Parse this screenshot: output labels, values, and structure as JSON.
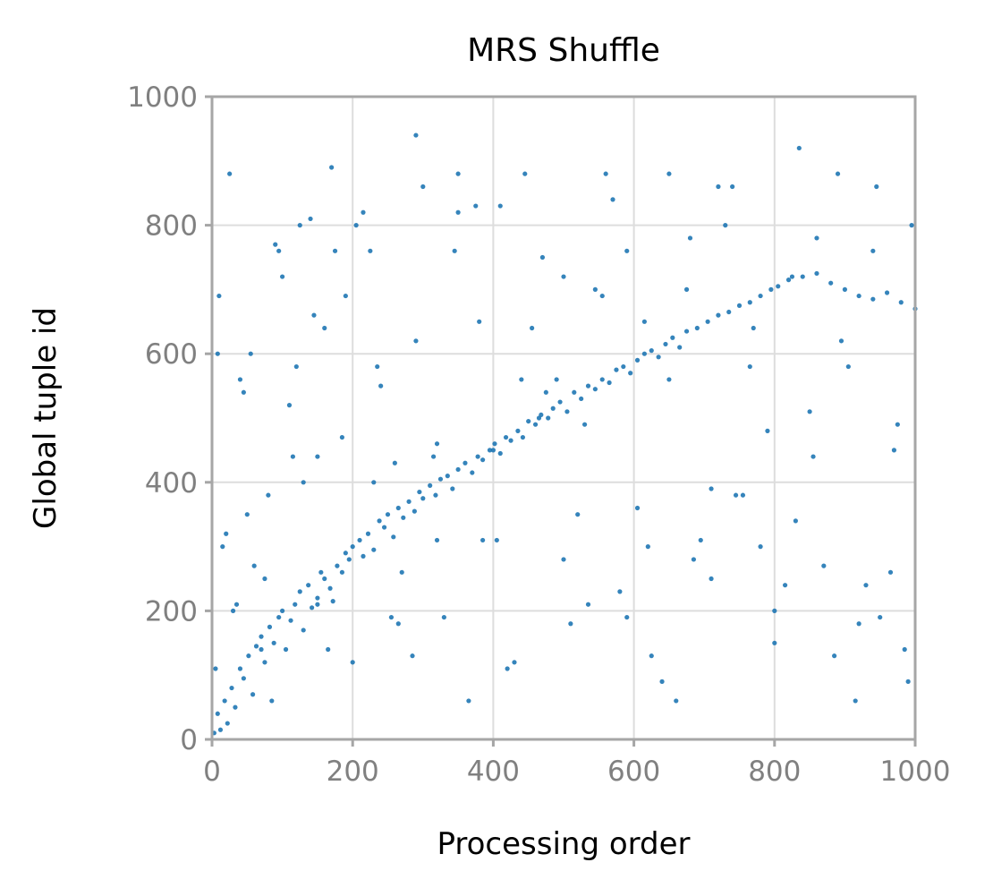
{
  "chart_data": {
    "type": "scatter",
    "title": "MRS Shuffle",
    "xlabel": "Processing order",
    "ylabel": "Global tuple id",
    "xlim": [
      0,
      1000
    ],
    "ylim": [
      0,
      1000
    ],
    "xticks": [
      0,
      200,
      400,
      600,
      800,
      1000
    ],
    "yticks": [
      0,
      200,
      400,
      600,
      800,
      1000
    ],
    "x_tick_labels": [
      "0",
      "200",
      "400",
      "600",
      "800",
      "1000"
    ],
    "y_tick_labels": [
      "0",
      "200",
      "400",
      "600",
      "800",
      "1000"
    ],
    "grid": true,
    "legend": "none",
    "color": "#1f77b4",
    "series": [
      {
        "x": [
          3,
          8,
          12,
          18,
          22,
          28,
          33,
          40,
          45,
          52,
          58,
          63,
          70,
          75,
          82,
          88,
          95,
          100,
          105,
          112,
          118,
          125,
          130,
          137,
          142,
          150,
          155,
          160,
          168,
          172,
          178,
          185,
          190,
          195,
          200,
          210,
          215,
          222,
          230,
          238,
          245,
          250,
          258,
          265,
          272,
          280,
          288,
          295,
          300,
          310,
          318,
          325,
          335,
          342,
          350,
          360,
          370,
          378,
          385,
          395,
          402,
          410,
          418,
          425,
          435,
          442,
          450,
          460,
          468,
          478,
          485,
          495,
          505,
          515,
          525,
          535,
          545,
          555,
          565,
          575,
          585,
          595,
          605,
          615,
          625,
          635,
          645,
          655,
          665,
          675,
          690,
          705,
          720,
          735,
          750,
          765,
          780,
          795,
          805,
          820,
          840,
          860,
          880,
          900,
          920,
          940,
          960,
          980,
          1000,
          10,
          25,
          40,
          60,
          75,
          90,
          110,
          130,
          150,
          170,
          190,
          215,
          240,
          265,
          290,
          320,
          350,
          380,
          410,
          440,
          470,
          500,
          530,
          560,
          590,
          620,
          650,
          680,
          710,
          740,
          770,
          800,
          830,
          860,
          890,
          920,
          950,
          975,
          15,
          35,
          55,
          80,
          100,
          125,
          150,
          175,
          200,
          230,
          260,
          290,
          320,
          350,
          385,
          420,
          455,
          490,
          520,
          555,
          590,
          625,
          660,
          695,
          730,
          765,
          800,
          835,
          870,
          905,
          940,
          970,
          995,
          5,
          20,
          45,
          70,
          95,
          120,
          145,
          165,
          205,
          235,
          270,
          300,
          330,
          365,
          400,
          430,
          465,
          500,
          535,
          570,
          605,
          640,
          675,
          710,
          745,
          780,
          815,
          850,
          885,
          915,
          945,
          985,
          8,
          30,
          50,
          85,
          115,
          140,
          160,
          185,
          225,
          255,
          285,
          315,
          345,
          375,
          405,
          445,
          475,
          510,
          545,
          580,
          615,
          650,
          685,
          720,
          755,
          790,
          825,
          855,
          895,
          930,
          965,
          990
        ],
        "y": [
          10,
          40,
          15,
          60,
          25,
          80,
          50,
          110,
          95,
          130,
          70,
          145,
          160,
          120,
          175,
          150,
          190,
          200,
          140,
          185,
          210,
          230,
          170,
          240,
          205,
          220,
          260,
          250,
          235,
          215,
          270,
          260,
          290,
          280,
          300,
          310,
          285,
          320,
          295,
          340,
          330,
          350,
          315,
          360,
          345,
          370,
          355,
          385,
          375,
          395,
          380,
          405,
          410,
          390,
          420,
          430,
          415,
          440,
          435,
          450,
          460,
          445,
          470,
          465,
          480,
          470,
          495,
          490,
          505,
          500,
          515,
          525,
          510,
          540,
          530,
          550,
          545,
          560,
          555,
          575,
          580,
          570,
          590,
          600,
          605,
          595,
          615,
          625,
          610,
          635,
          640,
          650,
          660,
          665,
          675,
          680,
          690,
          700,
          705,
          715,
          720,
          725,
          710,
          700,
          690,
          685,
          695,
          680,
          670,
          690,
          880,
          560,
          270,
          250,
          770,
          520,
          400,
          210,
          890,
          690,
          820,
          550,
          180,
          620,
          310,
          880,
          650,
          830,
          560,
          750,
          720,
          490,
          880,
          760,
          300,
          560,
          780,
          250,
          860,
          640,
          200,
          340,
          780,
          880,
          180,
          190,
          490,
          300,
          210,
          600,
          380,
          720,
          800,
          440,
          760,
          120,
          400,
          430,
          940,
          460,
          820,
          310,
          110,
          640,
          560,
          350,
          690,
          190,
          130,
          60,
          310,
          800,
          580,
          150,
          920,
          270,
          580,
          760,
          450,
          800,
          110,
          320,
          540,
          140,
          760,
          580,
          660,
          140,
          800,
          580,
          260,
          860,
          190,
          60,
          450,
          120,
          500,
          280,
          210,
          840,
          360,
          90,
          700,
          390,
          380,
          300,
          240,
          510,
          130,
          60,
          860,
          140,
          600,
          200,
          350,
          60,
          440,
          810,
          640,
          470,
          760,
          190,
          130,
          440,
          760,
          830,
          310,
          880,
          540,
          180,
          700,
          230,
          650,
          880,
          280,
          860,
          380,
          480,
          720,
          440,
          620,
          240,
          260,
          90
        ]
      }
    ]
  }
}
